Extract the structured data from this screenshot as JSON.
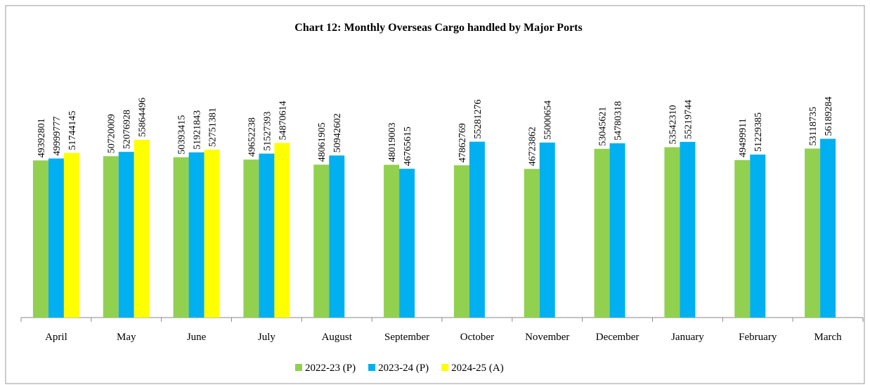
{
  "chart_data": {
    "type": "bar",
    "title": "Chart 12: Monthly Overseas Cargo handled by Major Ports",
    "categories": [
      "April",
      "May",
      "June",
      "July",
      "August",
      "September",
      "October",
      "November",
      "December",
      "January",
      "February",
      "March"
    ],
    "series": [
      {
        "name": "2022-23 (P)",
        "color": "#92d050",
        "values": [
          49392801,
          50720009,
          50393415,
          49652238,
          48061905,
          48019003,
          47862769,
          46723862,
          53045621,
          53542310,
          49499911,
          53118735
        ]
      },
      {
        "name": "2023-24 (P)",
        "color": "#00b0f0",
        "values": [
          49999777,
          52076928,
          51921843,
          51527393,
          50942602,
          46765615,
          55281276,
          55000654,
          54780318,
          55219744,
          51229385,
          56189284
        ]
      },
      {
        "name": "2024-25 (A)",
        "color": "#ffff00",
        "values": [
          51744145,
          55864496,
          52751381,
          54870614,
          null,
          null,
          null,
          null,
          null,
          null,
          null,
          null
        ]
      }
    ],
    "ylim": [
      0,
      70000000
    ],
    "legend": "bottom"
  }
}
